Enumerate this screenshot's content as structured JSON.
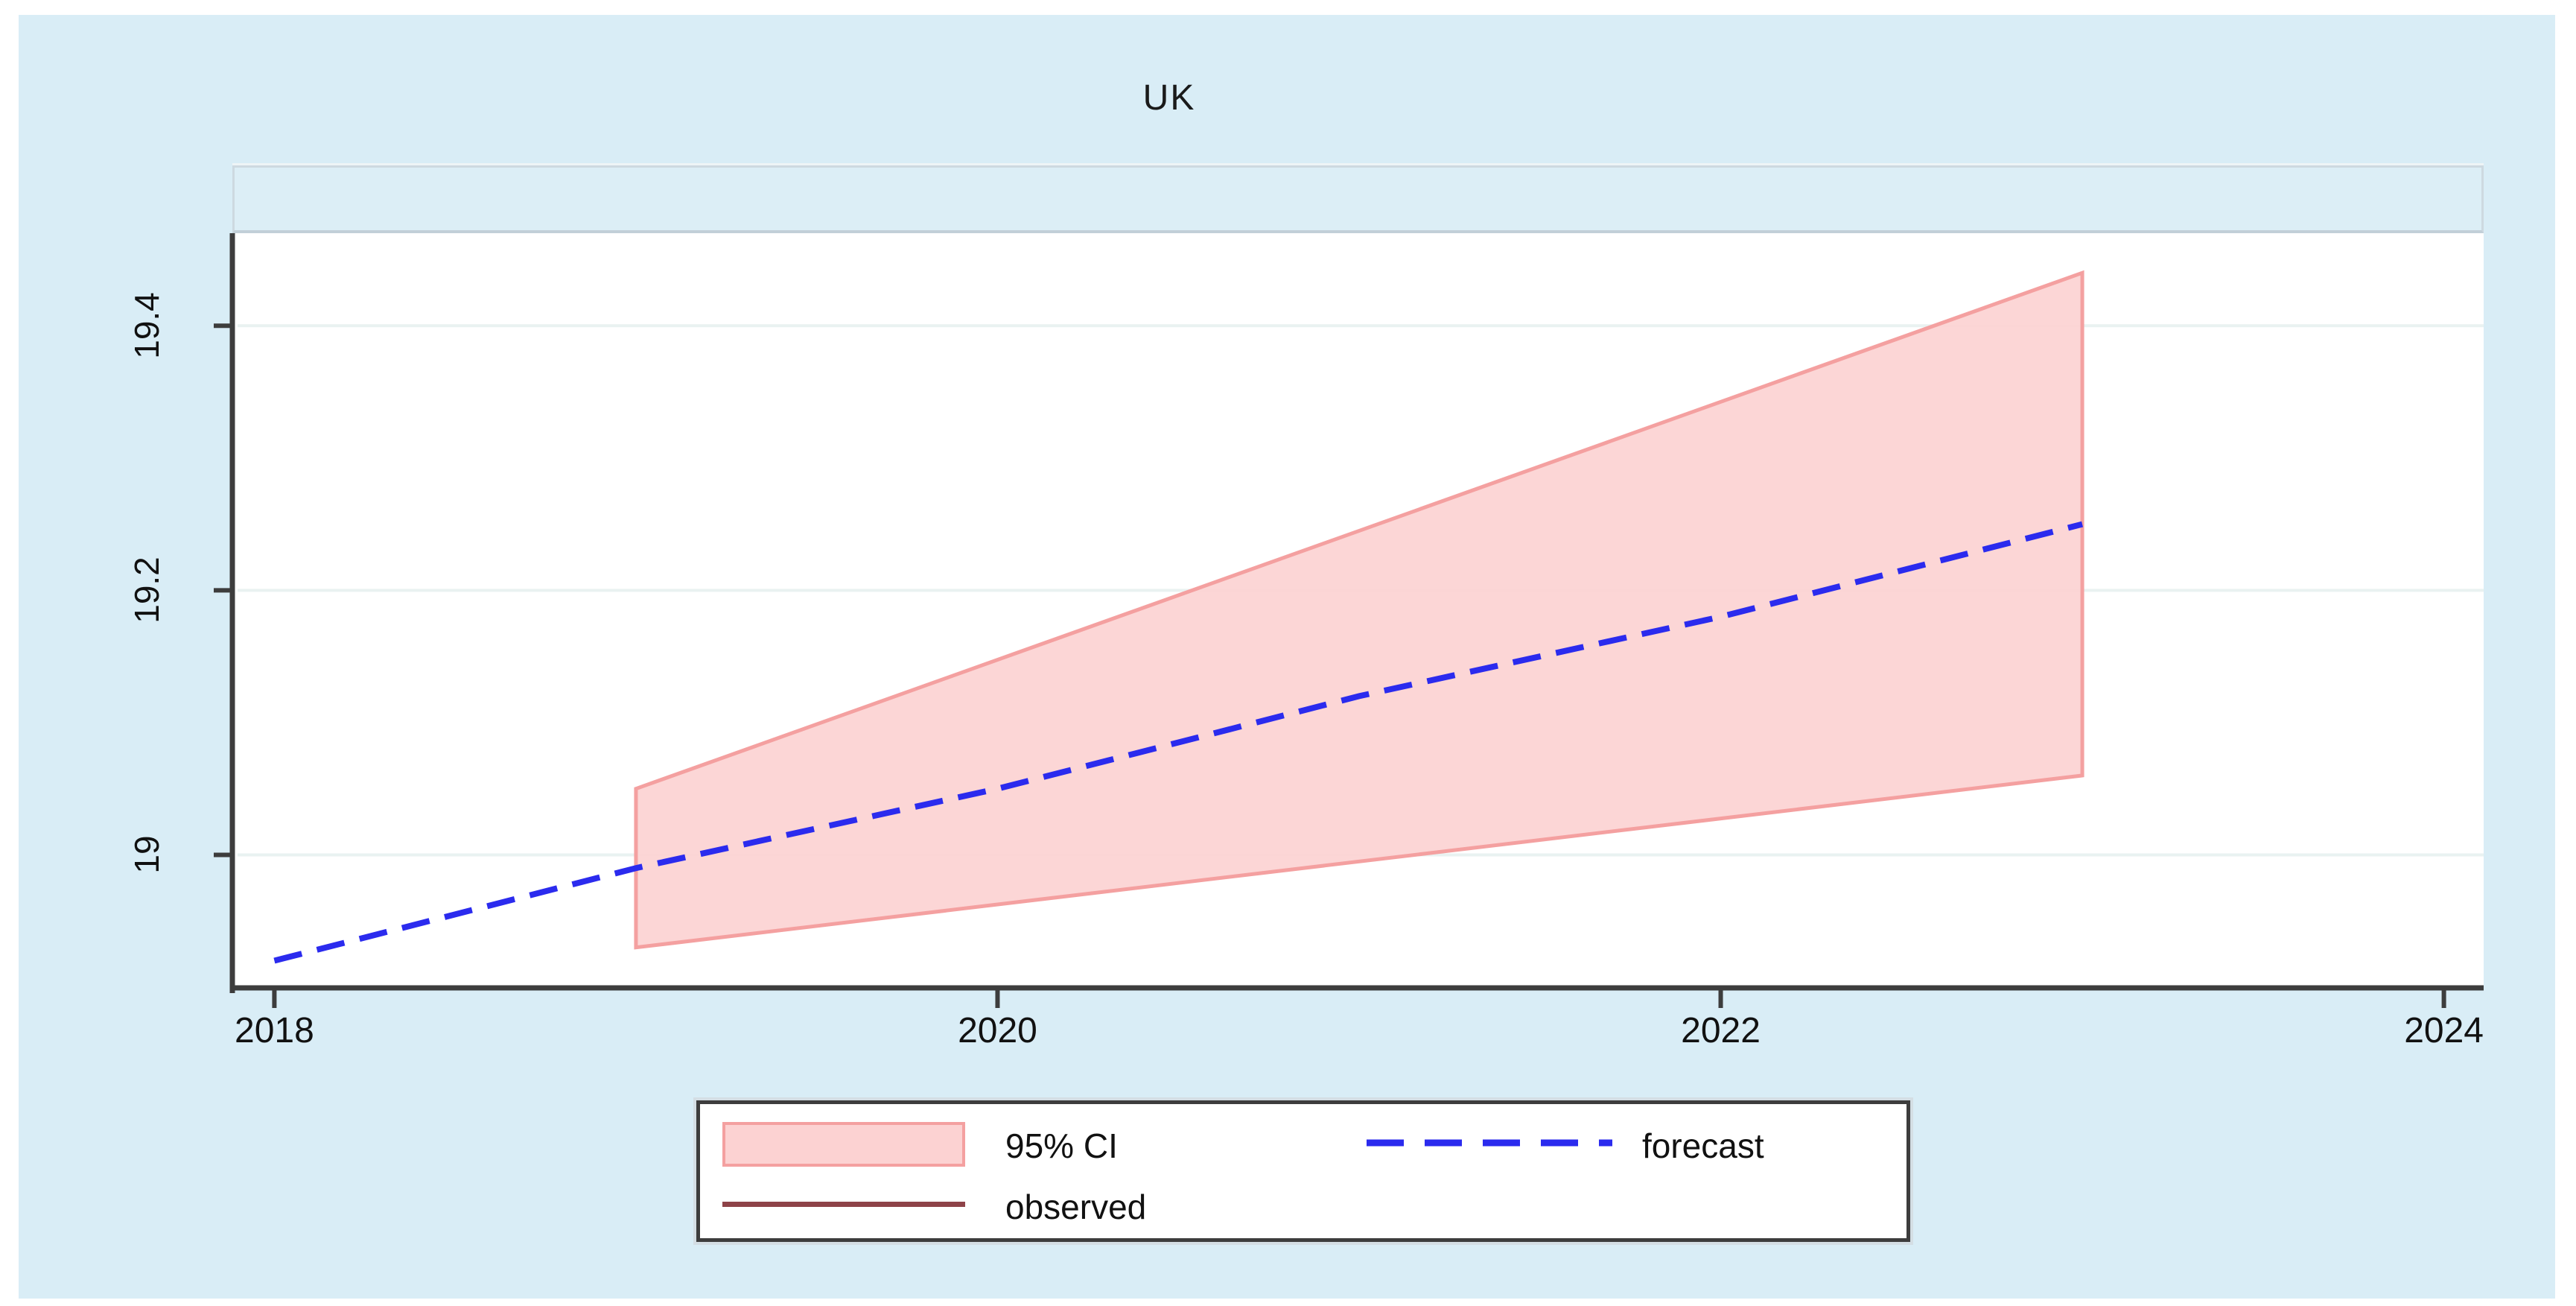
{
  "title": "UK",
  "chart_data": {
    "type": "area",
    "title": "UK",
    "subtitle_strip": "",
    "xlabel": "",
    "ylabel": "",
    "x_ticks": [
      2018,
      2020,
      2022,
      2024
    ],
    "y_ticks": [
      19,
      19.2,
      19.4
    ],
    "xlim": [
      2017.89,
      2024.11
    ],
    "ylim": [
      18.9,
      19.47
    ],
    "grid": "horizontal-only",
    "legend_position": "bottom-center",
    "series": [
      {
        "name": "95% CI",
        "type": "confidence-band",
        "x": [
          2019,
          2023
        ],
        "upper": [
          19.05,
          19.44
        ],
        "lower": [
          18.93,
          19.06
        ]
      },
      {
        "name": "forecast",
        "type": "dashed-line",
        "x": [
          2018,
          2019,
          2020,
          2021,
          2022,
          2023
        ],
        "y": [
          18.92,
          18.99,
          19.05,
          19.12,
          19.18,
          19.25
        ]
      },
      {
        "name": "observed",
        "type": "solid-line",
        "x": [],
        "y": [],
        "note": "appears in legend only; no observed data visible in plotted range"
      }
    ]
  },
  "legend": {
    "items": [
      {
        "label": "95% CI",
        "swatch": "area"
      },
      {
        "label": "forecast",
        "swatch": "dashed-line"
      },
      {
        "label": "observed",
        "swatch": "solid-line"
      }
    ]
  },
  "colors": {
    "page_background": "#ffffff",
    "canvas_background": "#d9edf6",
    "plot_background": "#ffffff",
    "strip_background": "#dceef6",
    "strip_border": "#cdd9e0",
    "frame": "#3d3d3d",
    "grid": "#e9f2f1",
    "ci_fill": "#fcd2d2",
    "ci_edge": "#f4a0a0",
    "forecast": "#2b2bee",
    "observed": "#8e4348",
    "text": "#111111",
    "legend_background": "#ffffff",
    "legend_border": "#3d3d3d"
  }
}
